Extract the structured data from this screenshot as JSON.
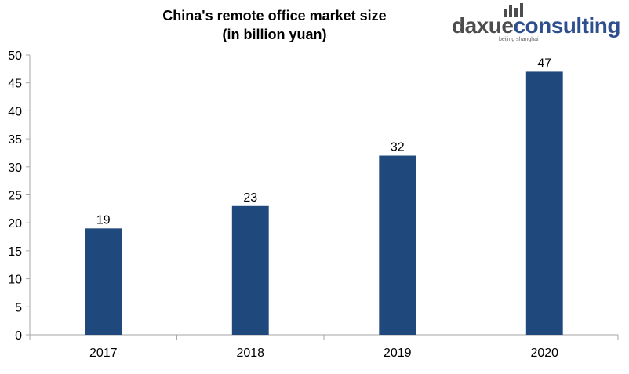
{
  "logo": {
    "word_dark_1": "daxue",
    "word_dark_2": "consulting",
    "tagline": "beijing shanghai"
  },
  "chart_data": {
    "type": "bar",
    "title": "China's remote office market size",
    "subtitle": "(in billion yuan)",
    "categories": [
      "2017",
      "2018",
      "2019",
      "2020"
    ],
    "values": [
      19,
      23,
      32,
      47
    ],
    "data_labels": [
      "19",
      "23",
      "32",
      "47"
    ],
    "ylim": [
      0,
      50
    ],
    "yticks": [
      0,
      5,
      10,
      15,
      20,
      25,
      30,
      35,
      40,
      45,
      50
    ],
    "grid": false,
    "legend": "none",
    "bar_color": "#1f497d"
  }
}
